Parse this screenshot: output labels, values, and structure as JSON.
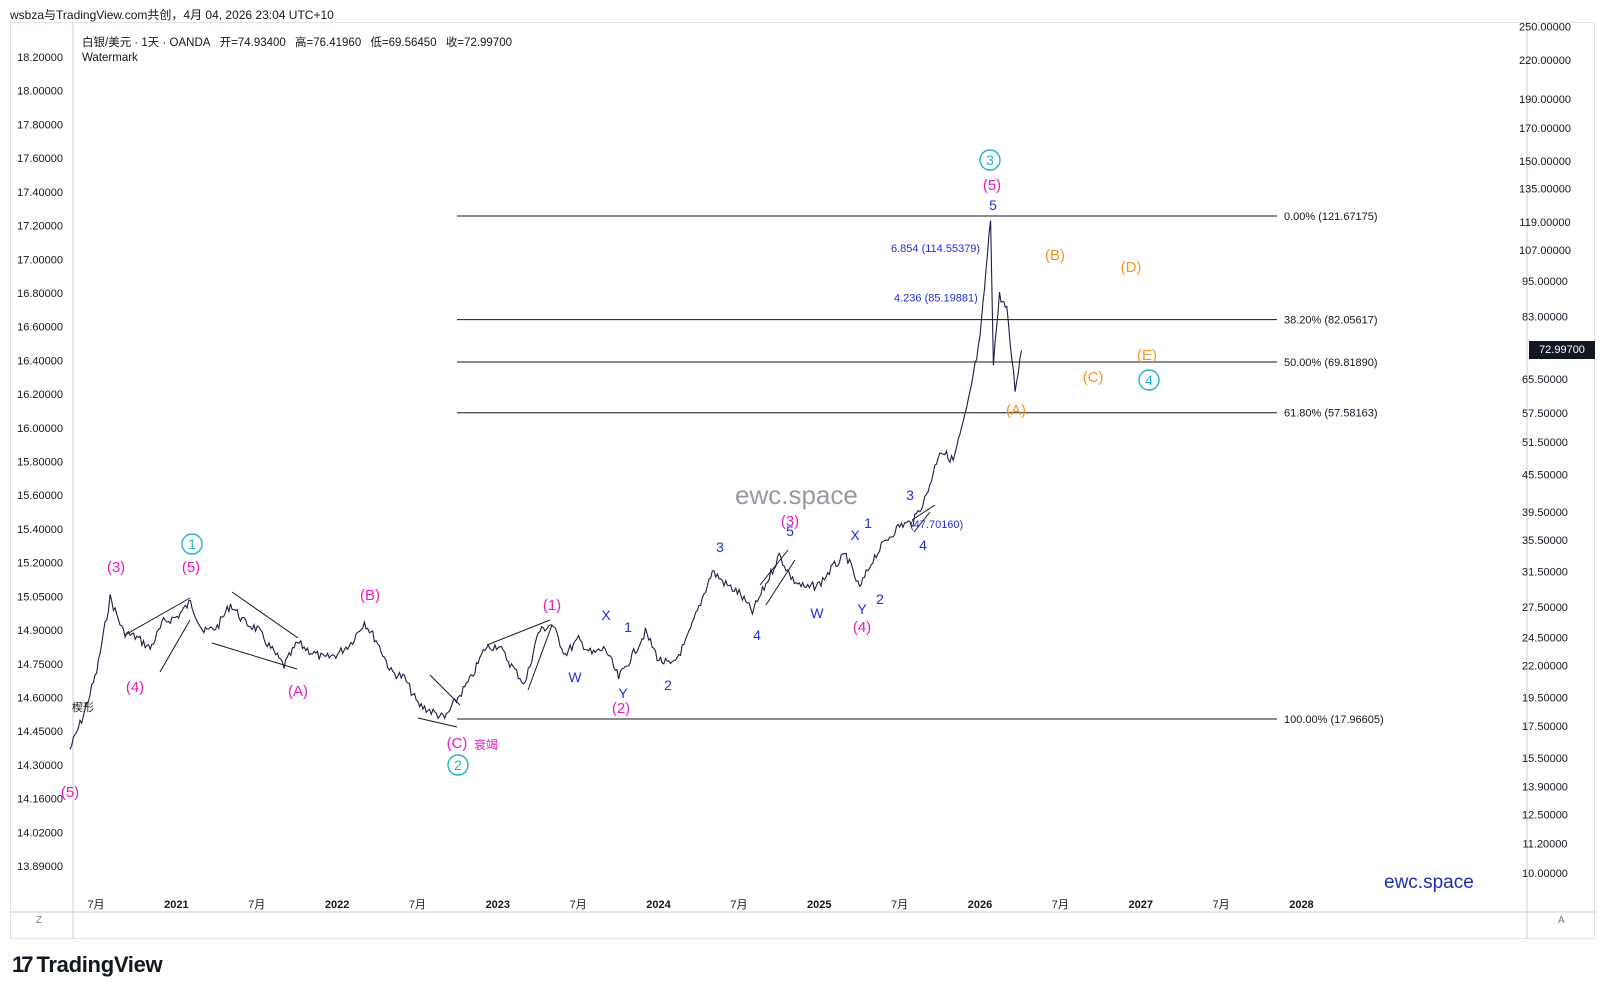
{
  "header": {
    "title": "wsbza与TradingView.com共创，4月 04, 2026 23:04 UTC+10"
  },
  "legend": {
    "symbol": "白银/美元 · 1天 · OANDA",
    "open": "开=74.93400",
    "high": "高=76.41960",
    "low": "低=69.56450",
    "close": "收=72.99700",
    "watermark_label": "Watermark"
  },
  "watermarks": {
    "center": "ewc.space",
    "corner": "ewc.space"
  },
  "brand": {
    "logo_glyph": "17",
    "name": "TradingView"
  },
  "controls": {
    "zoom_btn": "Z",
    "auto_btn": "A"
  },
  "price_tag": "72.99700",
  "side_label": "楔形",
  "chart_data": {
    "type": "line",
    "title": "",
    "log_scale": true,
    "colors": {
      "price": "#1e1e46",
      "fib": "#131722",
      "magenta": "#e619c8",
      "blue": "#1f2ee0",
      "cyan": "#1fb3c9",
      "orange": "#f5941e"
    },
    "x_tick_labels": [
      "7月",
      "2021",
      "7月",
      "2022",
      "7月",
      "2023",
      "7月",
      "2024",
      "7月",
      "2025",
      "7月",
      "2026",
      "7月",
      "2027",
      "7月",
      "2028"
    ],
    "left_axis_labels": [
      "18.20000",
      "18.00000",
      "17.80000",
      "17.60000",
      "17.40000",
      "17.20000",
      "17.00000",
      "16.80000",
      "16.60000",
      "16.40000",
      "16.20000",
      "16.00000",
      "15.80000",
      "15.60000",
      "15.40000",
      "15.20000",
      "15.05000",
      "14.90000",
      "14.75000",
      "14.60000",
      "14.45000",
      "14.30000",
      "14.16000",
      "14.02000",
      "13.89000"
    ],
    "right_axis_labels": [
      "250.00000",
      "220.00000",
      "190.00000",
      "170.00000",
      "150.00000",
      "135.00000",
      "119.00000",
      "107.00000",
      "95.00000",
      "83.00000",
      "72.99700",
      "65.50000",
      "57.50000",
      "51.50000",
      "45.50000",
      "39.50000",
      "35.50000",
      "31.50000",
      "27.50000",
      "24.50000",
      "22.00000",
      "19.50000",
      "17.50000",
      "15.50000",
      "13.90000",
      "12.50000",
      "11.20000",
      "10.00000"
    ],
    "fib_levels": [
      {
        "label": "0.00% (121.67175)",
        "value": 121.67175
      },
      {
        "label": "38.20% (82.05617)",
        "value": 82.05617
      },
      {
        "label": "50.00% (69.81890)",
        "value": 69.8189
      },
      {
        "label": "61.80% (57.58163)",
        "value": 57.58163
      },
      {
        "label": "100.00% (17.96605)",
        "value": 17.96605
      }
    ],
    "extension_labels": [
      "6.854 (114.55379)",
      "4.236 (85.19881)",
      "(47.70160)"
    ],
    "series": [
      {
        "values": [
          {
            "x": "2020-05",
            "y": 16.0
          },
          {
            "x": "2020-06",
            "y": 18.2
          },
          {
            "x": "2020-07",
            "y": 21.5
          },
          {
            "x": "2020-08",
            "y": 28.5
          },
          {
            "x": "2020-09",
            "y": 25.0
          },
          {
            "x": "2020-10",
            "y": 24.5
          },
          {
            "x": "2020-11",
            "y": 23.5
          },
          {
            "x": "2020-12",
            "y": 26.0
          },
          {
            "x": "2021-01",
            "y": 26.5
          },
          {
            "x": "2021-02",
            "y": 28.0
          },
          {
            "x": "2021-03",
            "y": 25.0
          },
          {
            "x": "2021-04",
            "y": 25.5
          },
          {
            "x": "2021-05",
            "y": 27.8
          },
          {
            "x": "2021-06",
            "y": 26.0
          },
          {
            "x": "2021-07",
            "y": 25.3
          },
          {
            "x": "2021-08",
            "y": 23.5
          },
          {
            "x": "2021-09",
            "y": 22.0
          },
          {
            "x": "2021-10",
            "y": 24.0
          },
          {
            "x": "2021-11",
            "y": 23.2
          },
          {
            "x": "2021-12",
            "y": 22.6
          },
          {
            "x": "2022-01",
            "y": 23.0
          },
          {
            "x": "2022-02",
            "y": 24.0
          },
          {
            "x": "2022-03",
            "y": 26.0
          },
          {
            "x": "2022-04",
            "y": 24.0
          },
          {
            "x": "2022-05",
            "y": 21.5
          },
          {
            "x": "2022-06",
            "y": 21.0
          },
          {
            "x": "2022-07",
            "y": 19.0
          },
          {
            "x": "2022-08",
            "y": 18.5
          },
          {
            "x": "2022-09",
            "y": 18.0
          },
          {
            "x": "2022-10",
            "y": 19.5
          },
          {
            "x": "2022-11",
            "y": 21.0
          },
          {
            "x": "2022-12",
            "y": 23.5
          },
          {
            "x": "2023-01",
            "y": 23.8
          },
          {
            "x": "2023-02",
            "y": 22.0
          },
          {
            "x": "2023-03",
            "y": 20.5
          },
          {
            "x": "2023-04",
            "y": 25.0
          },
          {
            "x": "2023-05",
            "y": 25.8
          },
          {
            "x": "2023-06",
            "y": 23.0
          },
          {
            "x": "2023-07",
            "y": 24.3
          },
          {
            "x": "2023-08",
            "y": 23.0
          },
          {
            "x": "2023-09",
            "y": 23.5
          },
          {
            "x": "2023-10",
            "y": 21.0
          },
          {
            "x": "2023-11",
            "y": 22.8
          },
          {
            "x": "2023-12",
            "y": 25.0
          },
          {
            "x": "2024-01",
            "y": 22.5
          },
          {
            "x": "2024-02",
            "y": 22.0
          },
          {
            "x": "2024-03",
            "y": 24.0
          },
          {
            "x": "2024-04",
            "y": 27.5
          },
          {
            "x": "2024-05",
            "y": 31.5
          },
          {
            "x": "2024-06",
            "y": 30.0
          },
          {
            "x": "2024-07",
            "y": 29.0
          },
          {
            "x": "2024-08",
            "y": 27.0
          },
          {
            "x": "2024-09",
            "y": 30.0
          },
          {
            "x": "2024-10",
            "y": 33.5
          },
          {
            "x": "2024-11",
            "y": 30.5
          },
          {
            "x": "2024-12",
            "y": 29.5
          },
          {
            "x": "2025-01",
            "y": 30.0
          },
          {
            "x": "2025-02",
            "y": 32.0
          },
          {
            "x": "2025-03",
            "y": 33.5
          },
          {
            "x": "2025-04",
            "y": 29.5
          },
          {
            "x": "2025-05",
            "y": 33.0
          },
          {
            "x": "2025-06",
            "y": 35.5
          },
          {
            "x": "2025-07",
            "y": 37.5
          },
          {
            "x": "2025-08",
            "y": 38.0
          },
          {
            "x": "2025-09",
            "y": 42.0
          },
          {
            "x": "2025-10",
            "y": 50.0
          },
          {
            "x": "2025-11",
            "y": 48.0
          },
          {
            "x": "2025-12",
            "y": 58.0
          },
          {
            "x": "2026-01",
            "y": 76.0
          },
          {
            "x": "2026-01-25",
            "y": 120.0
          },
          {
            "x": "2026-02",
            "y": 70.0
          },
          {
            "x": "2026-02-15",
            "y": 90.0
          },
          {
            "x": "2026-03",
            "y": 85.0
          },
          {
            "x": "2026-03-20",
            "y": 63.0
          },
          {
            "x": "2026-04-04",
            "y": 72.997
          }
        ]
      }
    ],
    "wave_labels": {
      "cyan": [
        "1",
        "2",
        "3",
        "4"
      ],
      "magenta": [
        "(1)",
        "(2)",
        "(3)",
        "(4)",
        "(5)",
        "(3)",
        "(5)",
        "(4)",
        "(A)",
        "(B)",
        "(C)",
        "(5)",
        "(3)"
      ],
      "orange": [
        "(A)",
        "(B)",
        "(C)",
        "(D)",
        "(E)"
      ],
      "blue": [
        "1",
        "2",
        "3",
        "4",
        "5",
        "1",
        "2",
        "3",
        "4",
        "5",
        "W",
        "X",
        "Y",
        "W",
        "X",
        "Y",
        "3",
        "4",
        "5"
      ],
      "magenta_text": [
        "衰竭"
      ]
    }
  }
}
